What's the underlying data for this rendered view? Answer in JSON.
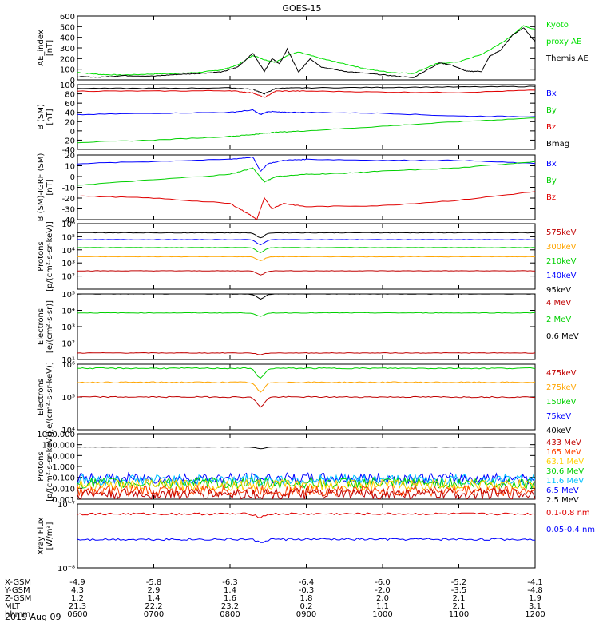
{
  "title": "GOES-15",
  "date_label": "2019 Aug 09",
  "chart_data": [
    {
      "type": "line",
      "panel": "ae",
      "ylabel": [
        "AE_index",
        "[nT]"
      ],
      "ylim": [
        0,
        600
      ],
      "ticks": [
        "0",
        "100",
        "200",
        "300",
        "400",
        "500",
        "600"
      ],
      "legend": [
        {
          "label": "Kyoto",
          "color": "#00e000"
        },
        {
          "label": "proxy AE",
          "color": "#00e000"
        },
        {
          "label": "Themis AE",
          "color": "#000000"
        }
      ],
      "series": [
        {
          "color": "#00e000",
          "x": [
            6.0,
            6.3,
            6.6,
            7.0,
            7.3,
            7.6,
            7.9,
            8.1,
            8.3,
            8.45,
            8.6,
            8.75,
            8.9,
            9.2,
            9.5,
            9.8,
            10.1,
            10.4,
            10.7,
            11.0,
            11.3,
            11.45,
            11.65,
            11.85,
            12.0
          ],
          "y": [
            70,
            50,
            45,
            55,
            60,
            70,
            95,
            140,
            230,
            190,
            165,
            230,
            260,
            200,
            150,
            100,
            70,
            60,
            150,
            170,
            240,
            300,
            390,
            510,
            470
          ]
        },
        {
          "color": "#000000",
          "x": [
            6.0,
            6.3,
            6.6,
            7.0,
            7.3,
            7.6,
            7.9,
            8.1,
            8.3,
            8.45,
            8.55,
            8.65,
            8.75,
            8.9,
            9.05,
            9.2,
            9.5,
            9.8,
            10.1,
            10.4,
            10.6,
            10.75,
            10.9,
            11.1,
            11.3,
            11.4,
            11.55,
            11.7,
            11.85,
            12.0
          ],
          "y": [
            30,
            25,
            40,
            35,
            50,
            60,
            75,
            120,
            250,
            80,
            200,
            150,
            290,
            70,
            200,
            120,
            80,
            60,
            40,
            20,
            100,
            160,
            140,
            80,
            80,
            220,
            280,
            420,
            490,
            360
          ]
        }
      ]
    },
    {
      "type": "line",
      "panel": "bsm",
      "ylabel": [
        "B (SM)",
        "[nT]"
      ],
      "ylim": [
        -40,
        100
      ],
      "ticks": [
        "-40",
        "-20",
        "0",
        "20",
        "40",
        "60",
        "80",
        "100"
      ],
      "legend": [
        {
          "label": "Bx",
          "color": "#0000ff"
        },
        {
          "label": "By",
          "color": "#00d000"
        },
        {
          "label": "Bz",
          "color": "#e00000"
        },
        {
          "label": "Bmag",
          "color": "#000000"
        }
      ],
      "series": [
        {
          "color": "#000000",
          "x": [
            6.0,
            7.0,
            8.0,
            8.3,
            8.45,
            8.6,
            9.0,
            10.0,
            11.0,
            12.0
          ],
          "y": [
            92,
            92,
            93,
            90,
            80,
            92,
            93,
            94,
            95,
            96
          ]
        },
        {
          "color": "#e00000",
          "x": [
            6.0,
            7.0,
            8.0,
            8.3,
            8.45,
            8.6,
            9.0,
            10.0,
            11.0,
            12.0
          ],
          "y": [
            86,
            86,
            87,
            82,
            72,
            86,
            86,
            84,
            83,
            88
          ]
        },
        {
          "color": "#0000ff",
          "x": [
            6.0,
            7.0,
            8.0,
            8.3,
            8.4,
            8.5,
            8.7,
            9.0,
            10.0,
            11.0,
            12.0
          ],
          "y": [
            35,
            38,
            40,
            45,
            35,
            42,
            40,
            40,
            38,
            32,
            31
          ]
        },
        {
          "color": "#00d000",
          "x": [
            6.0,
            7.0,
            8.0,
            8.3,
            8.45,
            8.6,
            9.0,
            10.0,
            11.0,
            12.0
          ],
          "y": [
            -25,
            -20,
            -12,
            -8,
            -5,
            -3,
            0,
            10,
            20,
            28
          ]
        }
      ]
    },
    {
      "type": "line",
      "panel": "digrf",
      "ylabel": [
        "B (SM)-IGRF (SM)",
        "[nT]"
      ],
      "ylim": [
        -40,
        20
      ],
      "ticks": [
        "-40",
        "-30",
        "-20",
        "-10",
        "0",
        "10",
        "20"
      ],
      "legend": [
        {
          "label": "Bx",
          "color": "#0000ff"
        },
        {
          "label": "By",
          "color": "#00d000"
        },
        {
          "label": "Bz",
          "color": "#e00000"
        }
      ],
      "series": [
        {
          "color": "#0000ff",
          "x": [
            6.0,
            7.0,
            8.0,
            8.3,
            8.4,
            8.5,
            8.7,
            9.0,
            10.0,
            11.0,
            12.0
          ],
          "y": [
            12,
            14,
            16,
            18,
            5,
            12,
            15,
            16,
            15,
            15,
            12
          ]
        },
        {
          "color": "#00d000",
          "x": [
            6.0,
            7.0,
            8.0,
            8.3,
            8.45,
            8.6,
            9.0,
            9.5,
            10.0,
            11.0,
            12.0
          ],
          "y": [
            -8,
            -3,
            2,
            8,
            -5,
            0,
            2,
            3,
            5,
            8,
            14
          ]
        },
        {
          "color": "#e00000",
          "x": [
            6.0,
            7.0,
            8.0,
            8.25,
            8.35,
            8.45,
            8.55,
            8.7,
            9.0,
            10.0,
            11.0,
            12.0
          ],
          "y": [
            -18,
            -20,
            -25,
            -35,
            -40,
            -20,
            -30,
            -25,
            -28,
            -27,
            -22,
            -14
          ]
        }
      ]
    },
    {
      "type": "line",
      "panel": "protons1",
      "log": true,
      "ylabel": [
        "Protons",
        "[p/(cm²-s-sr-keV)]"
      ],
      "ylim": [
        10,
        1000000
      ],
      "ticks": [
        "10²",
        "10³",
        "10⁴",
        "10⁵",
        "10⁶"
      ],
      "tickvals": [
        100,
        1000,
        10000,
        100000,
        1000000
      ],
      "legend": [
        {
          "label": "575keV",
          "color": "#c00000"
        },
        {
          "label": "300keV",
          "color": "#ffa500"
        },
        {
          "label": "210keV",
          "color": "#00d000"
        },
        {
          "label": "140keV",
          "color": "#0000ff"
        },
        {
          "label": "95keV",
          "color": "#000000"
        }
      ],
      "series": [
        {
          "color": "#000000",
          "base": 200000,
          "dip": 0.6
        },
        {
          "color": "#0000ff",
          "base": 60000,
          "dip": 0.6
        },
        {
          "color": "#00d000",
          "base": 15000,
          "dip": 0.6
        },
        {
          "color": "#ffa500",
          "base": 3000,
          "dip": 0.5
        },
        {
          "color": "#c00000",
          "base": 250,
          "dip": 0.5
        }
      ]
    },
    {
      "type": "line",
      "panel": "electrons1",
      "log": true,
      "ylabel": [
        "Electrons",
        "[e/(cm²-s-sr)]"
      ],
      "ylim": [
        10,
        100000
      ],
      "ticks": [
        "10¹",
        "10²",
        "10³",
        "10⁴",
        "10⁵"
      ],
      "tickvals": [
        10,
        100,
        1000,
        10000,
        100000
      ],
      "legend": [
        {
          "label": "4 MeV",
          "color": "#c00000"
        },
        {
          "label": "2 MeV",
          "color": "#00d000"
        },
        {
          "label": "0.6 MeV",
          "color": "#000000"
        }
      ],
      "series": [
        {
          "color": "#000000",
          "base": 100000,
          "dip": 0.5
        },
        {
          "color": "#00d000",
          "base": 7000,
          "dip": 0.4
        },
        {
          "color": "#c00000",
          "base": 25,
          "dip": 0.2
        }
      ]
    },
    {
      "type": "line",
      "panel": "electrons2",
      "log": true,
      "ylabel": [
        "Electrons",
        "[e/(cm²-s-sr-keV)]"
      ],
      "ylim": [
        10000,
        1000000
      ],
      "ticks": [
        "10⁴",
        "10⁵",
        "10⁶"
      ],
      "tickvals": [
        10000,
        100000,
        1000000
      ],
      "legend": [
        {
          "label": "475keV",
          "color": "#c00000"
        },
        {
          "label": "275keV",
          "color": "#ffa500"
        },
        {
          "label": "150keV",
          "color": "#00d000"
        },
        {
          "label": "75keV",
          "color": "#0000ff"
        },
        {
          "label": "40keV",
          "color": "#000000"
        }
      ],
      "series": [
        {
          "color": "#00d000",
          "base": 750000,
          "dip": 0.5
        },
        {
          "color": "#ffa500",
          "base": 280000,
          "dip": 0.5
        },
        {
          "color": "#c00000",
          "base": 100000,
          "dip": 0.5
        }
      ]
    },
    {
      "type": "line",
      "panel": "protons2",
      "log": true,
      "ylabel": [
        "Protons",
        "[p/(cm²-s-sr-keV)]"
      ],
      "ylim": [
        0.001,
        1000
      ],
      "ticks": [
        "0.001",
        "0.010",
        "0.100",
        "1.000",
        "10.000",
        "100.000",
        "1000.000"
      ],
      "tickvals": [
        0.001,
        0.01,
        0.1,
        1,
        10,
        100,
        1000
      ],
      "legend": [
        {
          "label": "433 MeV",
          "color": "#c00000"
        },
        {
          "label": "165 MeV",
          "color": "#ff4000"
        },
        {
          "label": "63.1 MeV",
          "color": "#ffd000"
        },
        {
          "label": "30.6 MeV",
          "color": "#00d000"
        },
        {
          "label": "11.6 MeV",
          "color": "#00c0ff"
        },
        {
          "label": "6.5 MeV",
          "color": "#0000ff"
        },
        {
          "label": "2.5 MeV",
          "color": "#000000"
        }
      ],
      "series": [
        {
          "color": "#000000",
          "base": 60,
          "dip": 0.3
        },
        {
          "color": "#0000ff",
          "base": 0.08,
          "noisy": true
        },
        {
          "color": "#00c0ff",
          "base": 0.06,
          "noisy": true
        },
        {
          "color": "#00d000",
          "base": 0.03,
          "noisy": true
        },
        {
          "color": "#ffd000",
          "base": 0.02,
          "noisy": true
        },
        {
          "color": "#ff4000",
          "base": 0.006,
          "noisy": true
        },
        {
          "color": "#c00000",
          "base": 0.003,
          "noisy": true
        }
      ]
    },
    {
      "type": "line",
      "panel": "xray",
      "log": true,
      "ylabel": [
        "Xray Flux",
        "[W/m²]"
      ],
      "ylim": [
        1e-08,
        1e-07
      ],
      "ticks": [
        "10⁻⁸",
        "10⁻⁷"
      ],
      "tickvals": [
        1e-08,
        1e-07
      ],
      "legend": [
        {
          "label": "0.1-0.8 nm",
          "color": "#e00000"
        },
        {
          "label": "0.05-0.4 nm",
          "color": "#0000ff"
        }
      ],
      "series": [
        {
          "color": "#e00000",
          "base": 7e-08,
          "dip": 0.1
        },
        {
          "color": "#0000ff",
          "base": 2.8e-08,
          "dip": 0.1
        }
      ]
    }
  ],
  "xaxis": {
    "rows": [
      {
        "label": "X-GSM",
        "values": [
          "-4.9",
          "-5.8",
          "-6.3",
          "-6.4",
          "-6.0",
          "-5.2",
          "-4.1"
        ]
      },
      {
        "label": "Y-GSM",
        "values": [
          "4.3",
          "2.9",
          "1.4",
          "-0.3",
          "-2.0",
          "-3.5",
          "-4.8"
        ]
      },
      {
        "label": "Z-GSM",
        "values": [
          "1.2",
          "1.4",
          "1.6",
          "1.8",
          "2.0",
          "2.1",
          "1.9"
        ]
      },
      {
        "label": "MLT",
        "values": [
          "21.3",
          "22.2",
          "23.2",
          "0.2",
          "1.1",
          "2.1",
          "3.1"
        ]
      },
      {
        "label": "hhmm",
        "values": [
          "0600",
          "0700",
          "0800",
          "0900",
          "1000",
          "1100",
          "1200"
        ]
      }
    ]
  }
}
